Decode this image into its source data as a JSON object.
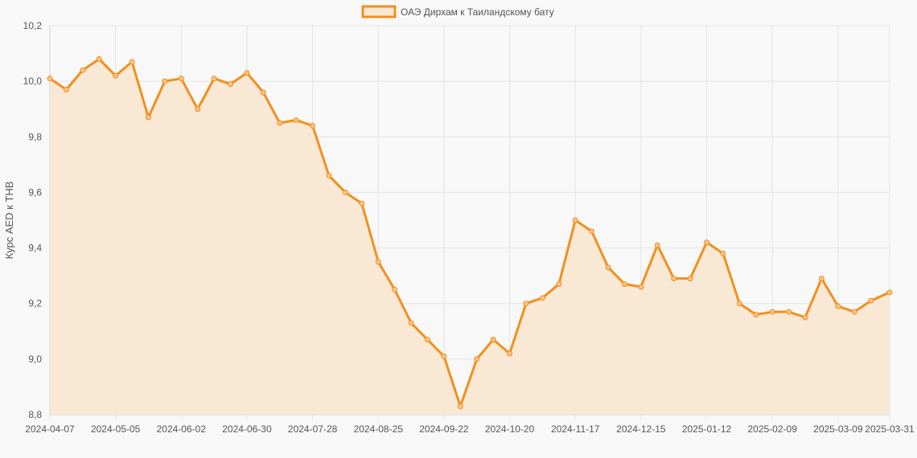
{
  "chart_data": {
    "type": "line",
    "legend": {
      "label": "ОАЭ Дирхам к Таиландскому бату",
      "placement": "top-center"
    },
    "ylabel": "Курс AED к THB",
    "xlabel": "",
    "ylim": [
      8.8,
      10.2
    ],
    "yticks": [
      "8,8",
      "9,0",
      "9,2",
      "9,4",
      "9,6",
      "9,8",
      "10,0",
      "10,2"
    ],
    "xticks": [
      "2024-04-07",
      "2024-05-05",
      "2024-06-02",
      "2024-06-30",
      "2024-07-28",
      "2024-08-25",
      "2024-09-22",
      "2024-10-20",
      "2024-11-17",
      "2024-12-15",
      "2025-01-12",
      "2025-02-09",
      "2025-03-09",
      "2025-03-31"
    ],
    "grid": true,
    "colors": {
      "line": "#f0901e",
      "fill": "#f8e8d4",
      "grid": "#e3e3e3",
      "background": "#f8f8f8"
    },
    "series": [
      {
        "name": "ОАЭ Дирхам к Таиландскому бату",
        "x": [
          "2024-04-07",
          "2024-04-14",
          "2024-04-21",
          "2024-04-28",
          "2024-05-05",
          "2024-05-12",
          "2024-05-19",
          "2024-05-26",
          "2024-06-02",
          "2024-06-09",
          "2024-06-16",
          "2024-06-23",
          "2024-06-30",
          "2024-07-07",
          "2024-07-14",
          "2024-07-21",
          "2024-07-28",
          "2024-08-04",
          "2024-08-11",
          "2024-08-18",
          "2024-08-25",
          "2024-09-01",
          "2024-09-08",
          "2024-09-15",
          "2024-09-22",
          "2024-09-29",
          "2024-10-06",
          "2024-10-13",
          "2024-10-20",
          "2024-10-27",
          "2024-11-03",
          "2024-11-10",
          "2024-11-17",
          "2024-11-24",
          "2024-12-01",
          "2024-12-08",
          "2024-12-15",
          "2024-12-22",
          "2024-12-29",
          "2025-01-05",
          "2025-01-12",
          "2025-01-19",
          "2025-01-26",
          "2025-02-02",
          "2025-02-09",
          "2025-02-16",
          "2025-02-23",
          "2025-03-02",
          "2025-03-09",
          "2025-03-16",
          "2025-03-23",
          "2025-03-31"
        ],
        "values": [
          10.01,
          9.97,
          10.04,
          10.08,
          10.02,
          10.07,
          9.87,
          10.0,
          10.01,
          9.9,
          10.01,
          9.99,
          10.03,
          9.96,
          9.85,
          9.86,
          9.84,
          9.66,
          9.6,
          9.56,
          9.35,
          9.25,
          9.13,
          9.07,
          9.01,
          8.83,
          9.0,
          9.07,
          9.02,
          9.2,
          9.22,
          9.27,
          9.5,
          9.46,
          9.33,
          9.27,
          9.26,
          9.41,
          9.29,
          9.29,
          9.42,
          9.38,
          9.2,
          9.16,
          9.17,
          9.17,
          9.15,
          9.29,
          9.19,
          9.17,
          9.21,
          9.24
        ]
      }
    ]
  }
}
